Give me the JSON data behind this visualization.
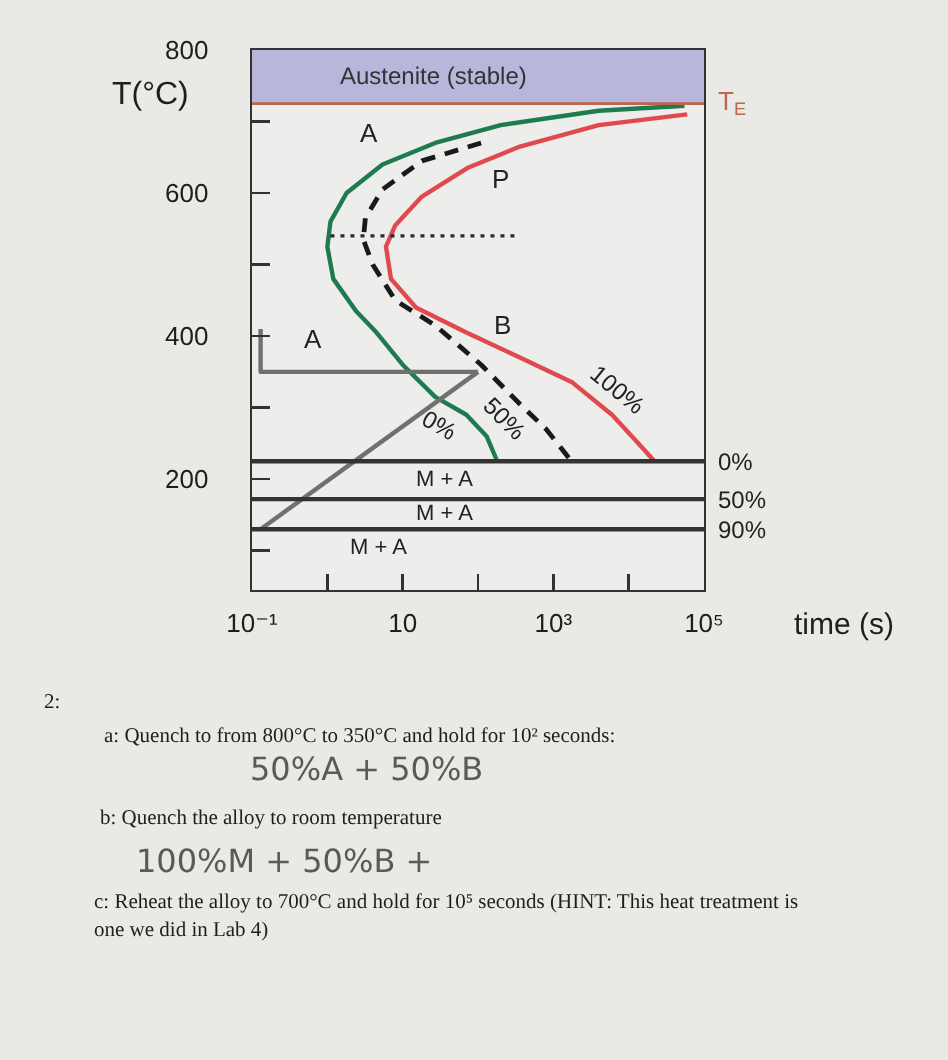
{
  "chart_data": {
    "type": "line",
    "xlabel": "time (s)",
    "ylabel": "T(°C)",
    "log": "x",
    "xlim": [
      0.1,
      100000
    ],
    "ylim": [
      45,
      800
    ],
    "xticks": [
      {
        "value": 0.1,
        "label": "10⁻¹"
      },
      {
        "value": 1,
        "label": null
      },
      10,
      {
        "value": 100,
        "label": null
      },
      {
        "value": 1000,
        "label": "10³"
      },
      {
        "value": 10000,
        "label": null
      },
      {
        "value": 100000,
        "label": "10⁵"
      }
    ],
    "yticks": [
      {
        "value": 100,
        "label": null
      },
      200,
      {
        "value": 300,
        "label": null
      },
      400,
      {
        "value": 500,
        "label": null
      },
      600,
      {
        "value": 700,
        "label": null
      },
      800
    ],
    "series": [
      {
        "name": "0%",
        "color": "#1e7b4d",
        "line_style": "solid",
        "x": [
          55000,
          4000,
          200,
          27,
          5.4,
          1.8,
          1.1,
          1,
          1.2,
          2.4,
          4.5,
          10,
          27,
          70,
          130,
          180
        ],
        "values": [
          722,
          715,
          695,
          670,
          640,
          600,
          560,
          525,
          480,
          435,
          405,
          360,
          315,
          290,
          260,
          225
        ]
      },
      {
        "name": "50%",
        "color": "#1a1a1a",
        "line_style": "dashed",
        "x": [
          110,
          18,
          5.4,
          3.2,
          3,
          4,
          8,
          27,
          110,
          360,
          800,
          1600
        ],
        "values": [
          670,
          645,
          605,
          565,
          535,
          500,
          450,
          415,
          360,
          305,
          270,
          230
        ]
      },
      {
        "name": "100%",
        "color": "#e04a4e",
        "line_style": "solid",
        "x": [
          60000,
          4000,
          360,
          72,
          18,
          8,
          6,
          7,
          15,
          70,
          360,
          1800,
          6000,
          13500,
          22000
        ],
        "values": [
          710,
          695,
          665,
          635,
          595,
          555,
          525,
          480,
          440,
          405,
          370,
          335,
          290,
          250,
          225
        ]
      },
      {
        "color": "#2a2a2a",
        "line_style": "dotted",
        "x": [
          1.1,
          360
        ],
        "values": [
          540,
          540
        ]
      },
      {
        "color": "#707070",
        "line_style": "solid",
        "x": [
          0.13,
          0.13,
          100
        ],
        "values": [
          410,
          350,
          350
        ]
      },
      {
        "color": "#707070",
        "line_style": "solid",
        "x": [
          0.13,
          100
        ],
        "values": [
          130,
          350
        ]
      },
      {
        "name": "0%",
        "color": "#333333",
        "line_style": "solid",
        "x": [
          0.1,
          100000
        ],
        "values": [
          225,
          225
        ]
      },
      {
        "name": "50%",
        "color": "#333333",
        "line_style": "solid",
        "x": [
          0.1,
          100000
        ],
        "values": [
          172,
          172
        ]
      },
      {
        "name": "90%",
        "color": "#333333",
        "line_style": "solid",
        "x": [
          0.1,
          100000
        ],
        "values": [
          130,
          130
        ]
      }
    ],
    "bands": [
      {
        "axis": "y",
        "from": 725,
        "to": 800,
        "label": "Austenite (stable)",
        "color": "#b9b6dc"
      }
    ],
    "ref_lines": [
      {
        "axis": "y",
        "value": 725,
        "label": "T$_{E}$",
        "color": "#c0644e"
      }
    ],
    "annotations": [
      "A",
      "P",
      "A",
      "B",
      "M + A",
      "M + A",
      "M + A",
      "2:",
      "a: Quench to from 800°C to 350°C and hold for 10² seconds:",
      "50%A + 50%B",
      "b: Quench the alloy to room temperature",
      "100%M + 50%B +",
      "c: Reheat the alloy to 700°C and hold for 10⁵ seconds (HINT: This heat treatment is one we did in Lab 4)"
    ]
  }
}
